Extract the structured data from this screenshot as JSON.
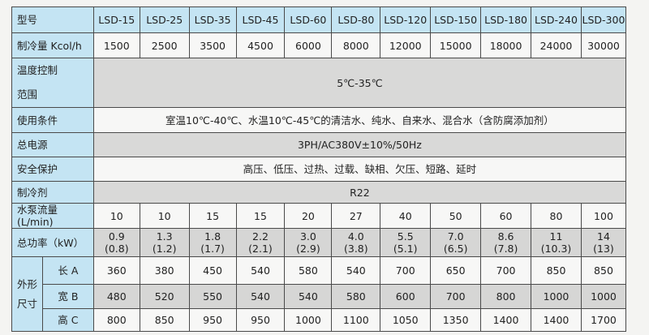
{
  "header": {
    "label": "型号",
    "models": [
      "LSD-15",
      "LSD-25",
      "LSD-35",
      "LSD-45",
      "LSD-60",
      "LSD-80",
      "LSD-120",
      "LSD-150",
      "LSD-180",
      "LSD-240",
      "LSD-300"
    ]
  },
  "cooling": {
    "label": "制冷量 Kcol/h",
    "values": [
      "1500",
      "2500",
      "3500",
      "4500",
      "6000",
      "8000",
      "12000",
      "15000",
      "18000",
      "24000",
      "30000"
    ]
  },
  "temp_range": {
    "label_line1": "温度控制",
    "label_line2": "范围",
    "value": "5℃-35℃"
  },
  "conditions": {
    "label": "使用条件",
    "value": "室温10℃-40℃、水温10℃-45℃的清洁水、纯水、自来水、混合水（含防腐添加剂）"
  },
  "power_supply": {
    "label": "总电源",
    "value": "3PH/AC380V±10%/50Hz"
  },
  "protection": {
    "label": "安全保护",
    "value": "高压、低压、过热、过载、缺相、欠压、短路、延时"
  },
  "refrigerant": {
    "label": "制冷剂",
    "value": "R22"
  },
  "pump_flow": {
    "label": "水泵流量(L/min)",
    "values": [
      "10",
      "10",
      "15",
      "15",
      "20",
      "27",
      "40",
      "50",
      "60",
      "80",
      "100"
    ]
  },
  "total_power": {
    "label": "总功率（kW）",
    "values": [
      [
        "0.9",
        "(0.8)"
      ],
      [
        "1.3",
        "(1.2)"
      ],
      [
        "1.8",
        "(1.7)"
      ],
      [
        "2.2",
        "(2.1)"
      ],
      [
        "3.0",
        "(2.9)"
      ],
      [
        "4.0",
        "(3.8)"
      ],
      [
        "5.5",
        "(5.1)"
      ],
      [
        "7.0",
        "(6.5)"
      ],
      [
        "8.6",
        "(7.8)"
      ],
      [
        "11",
        "(10.3)"
      ],
      [
        "14",
        "(13)"
      ]
    ]
  },
  "dimensions": {
    "label_line1": "外形",
    "label_line2": "尺寸",
    "rows": [
      {
        "label": "长 A",
        "values": [
          "360",
          "380",
          "450",
          "540",
          "580",
          "540",
          "700",
          "650",
          "700",
          "850",
          "850"
        ]
      },
      {
        "label": "宽 B",
        "values": [
          "480",
          "520",
          "550",
          "540",
          "540",
          "580",
          "600",
          "700",
          "800",
          "1000",
          "1000"
        ]
      },
      {
        "label": "高 C",
        "values": [
          "800",
          "850",
          "950",
          "950",
          "1000",
          "1100",
          "1050",
          "1350",
          "1400",
          "1400",
          "1700"
        ]
      }
    ]
  }
}
